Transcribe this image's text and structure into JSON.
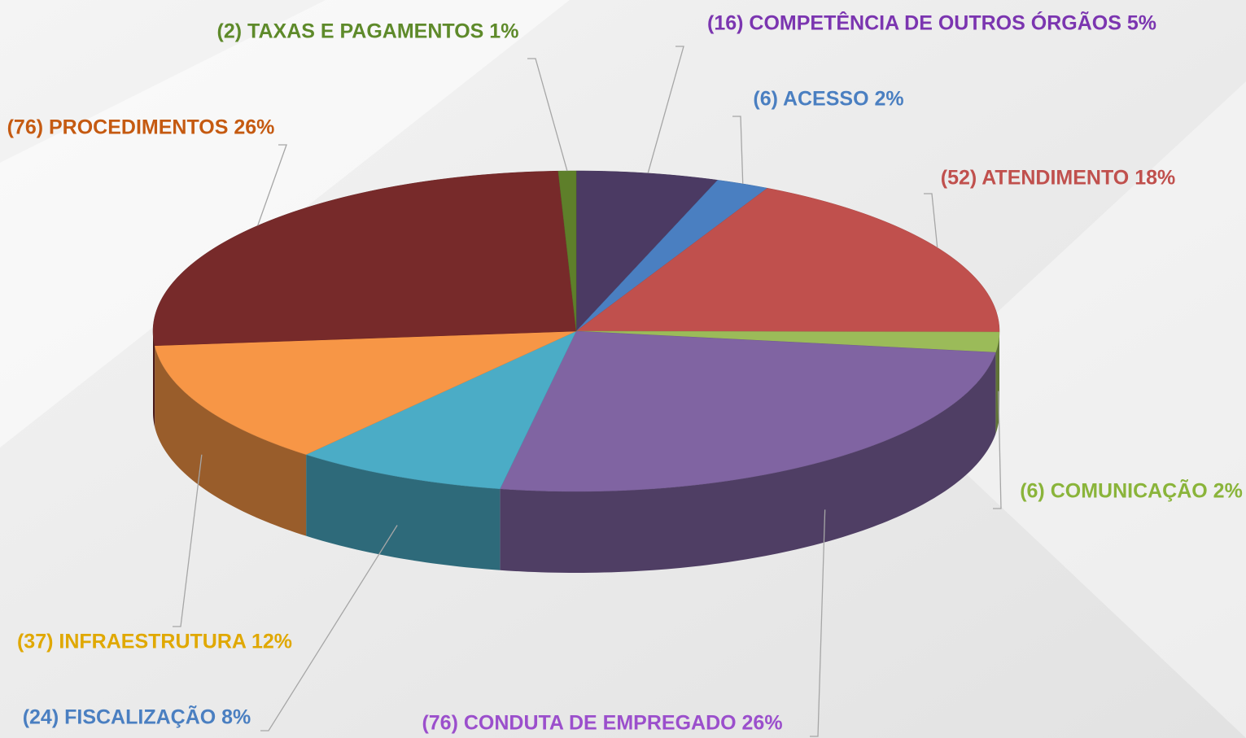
{
  "chart_data": {
    "type": "pie3d",
    "labels": [
      "(16) COMPETÊNCIA DE OUTROS ÓRGÃOS 5%",
      "(6) ACESSO 2%",
      "(52) ATENDIMENTO 18%",
      "(6) COMUNICAÇÃO 2%",
      "(76) CONDUTA DE EMPREGADO 26%",
      "(24) FISCALIZAÇÃO 8%",
      "(37) INFRAESTRUTURA 12%",
      "(76) PROCEDIMENTOS 26%",
      "(2) TAXAS E PAGAMENTOS 1%"
    ],
    "values": [
      16,
      6,
      52,
      6,
      76,
      24,
      37,
      76,
      2
    ],
    "colors": [
      "#4b3a63",
      "#4a7fc1",
      "#c0504d",
      "#9bbb59",
      "#8064a2",
      "#4bacc6",
      "#f79646",
      "#772a2a",
      "#5e7f2a"
    ],
    "label_colors": [
      "#7b35b0",
      "#4a7fc1",
      "#c0504d",
      "#8ab43a",
      "#9b4fcc",
      "#4a7fc1",
      "#e0a800",
      "#c55a11",
      "#5e8a2a"
    ]
  }
}
